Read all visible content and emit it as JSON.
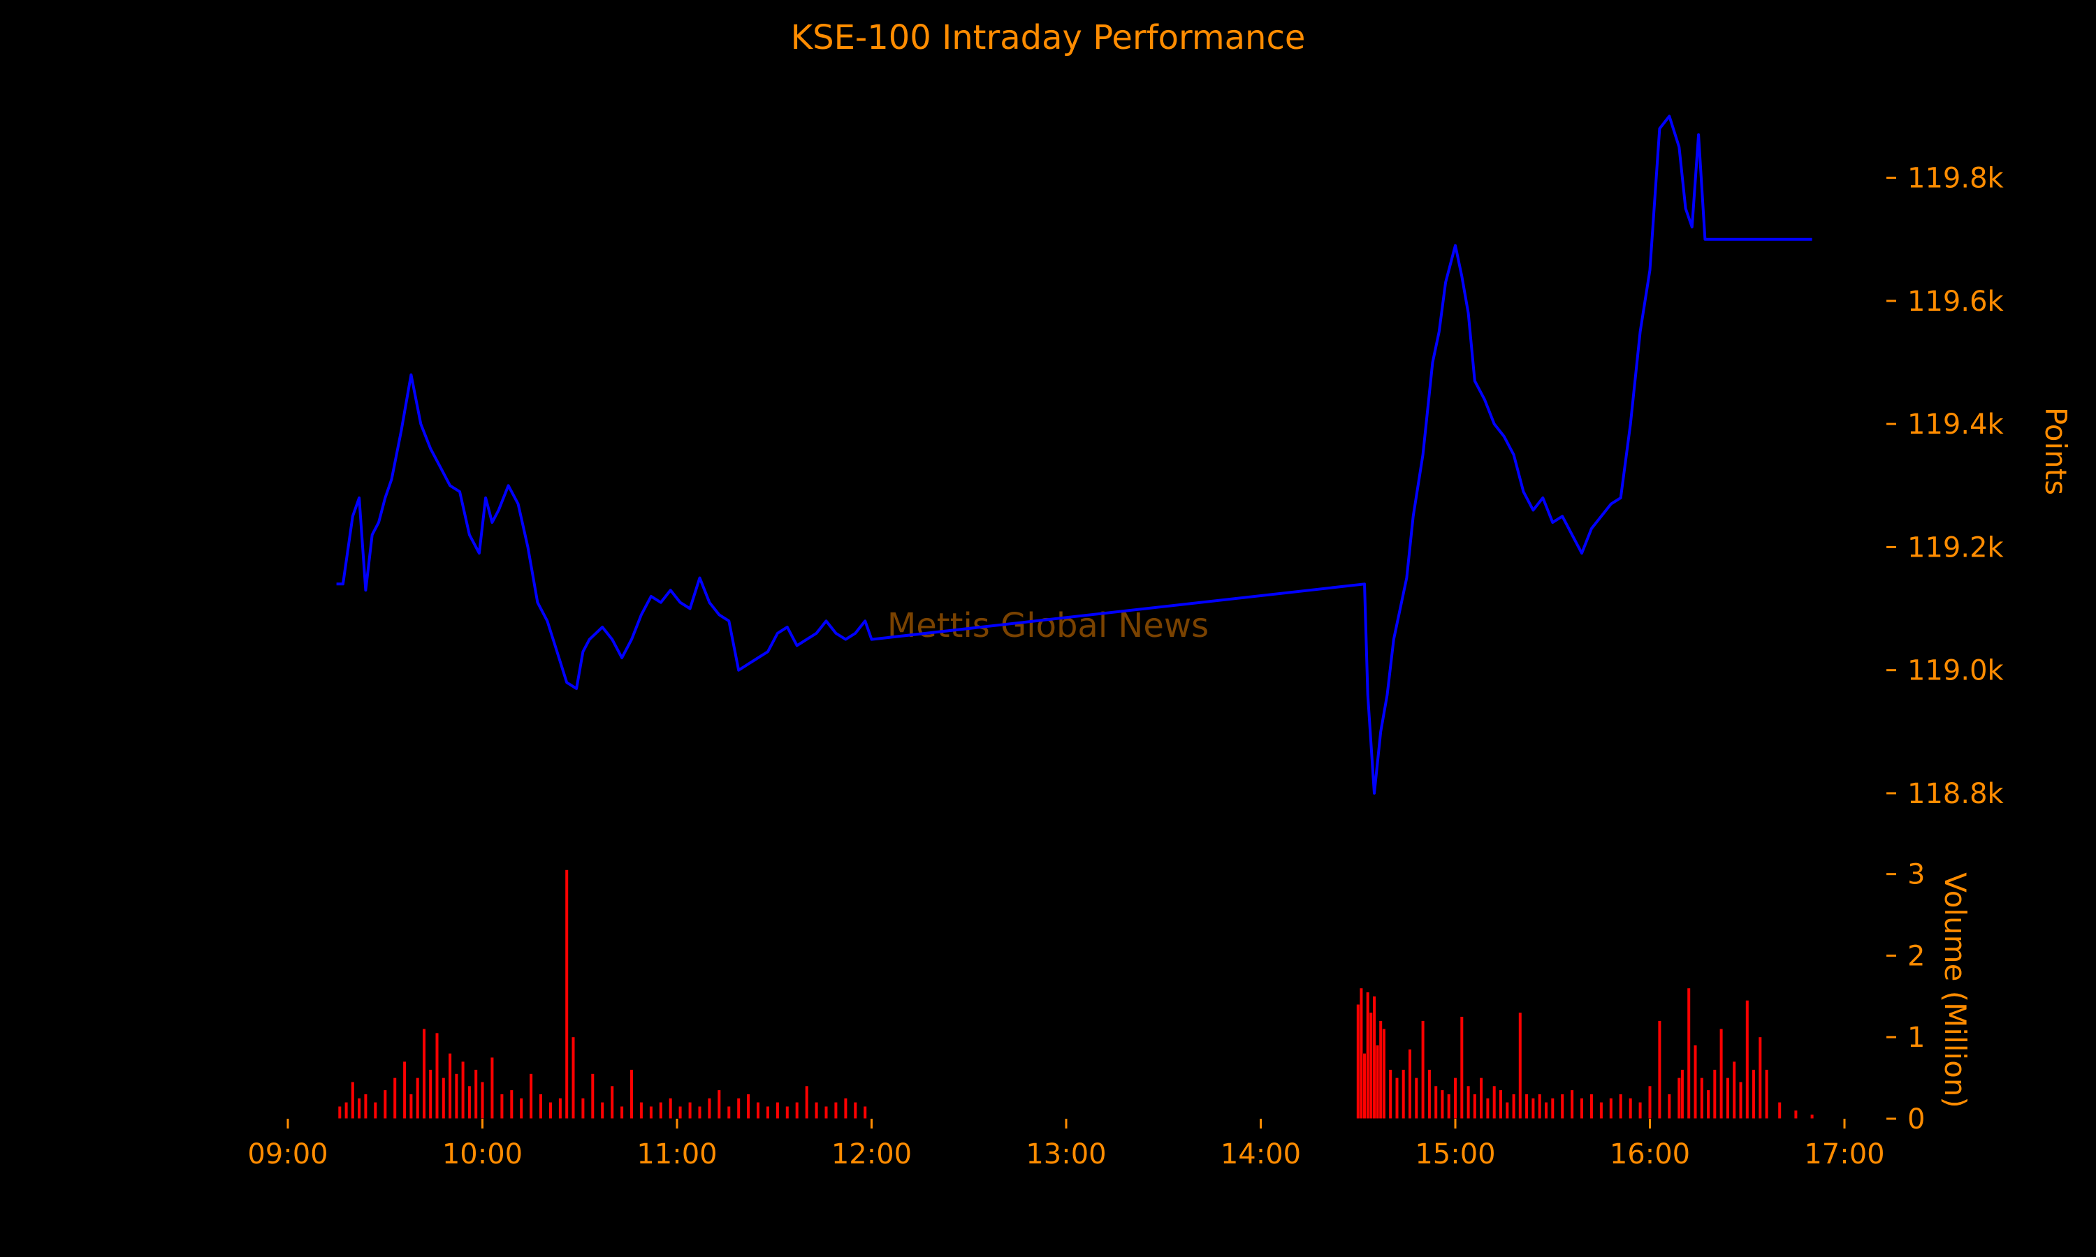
{
  "chart_data": [
    {
      "type": "line",
      "title": "KSE-100 Intraday Performance",
      "watermark": "Mettis Global News",
      "ylabel": "Points",
      "ylim": [
        118750,
        119930
      ],
      "yticks": [
        {
          "value": 118800,
          "label": "118.8k"
        },
        {
          "value": 119000,
          "label": "119.0k"
        },
        {
          "value": 119200,
          "label": "119.2k"
        },
        {
          "value": 119400,
          "label": "119.4k"
        },
        {
          "value": 119600,
          "label": "119.6k"
        },
        {
          "value": 119800,
          "label": "119.8k"
        }
      ],
      "series": [
        {
          "color": "#0000ff",
          "x": [
            "09:15",
            "09:17",
            "09:20",
            "09:22",
            "09:24",
            "09:26",
            "09:28",
            "09:30",
            "09:32",
            "09:35",
            "09:38",
            "09:41",
            "09:44",
            "09:47",
            "09:50",
            "09:53",
            "09:56",
            "09:59",
            "10:01",
            "10:03",
            "10:05",
            "10:08",
            "10:11",
            "10:14",
            "10:17",
            "10:20",
            "10:23",
            "10:26",
            "10:29",
            "10:31",
            "10:33",
            "10:35",
            "10:37",
            "10:40",
            "10:43",
            "10:46",
            "10:49",
            "10:52",
            "10:55",
            "10:58",
            "11:01",
            "11:04",
            "11:07",
            "11:10",
            "11:13",
            "11:16",
            "11:19",
            "11:22",
            "11:25",
            "11:28",
            "11:31",
            "11:34",
            "11:37",
            "11:40",
            "11:43",
            "11:46",
            "11:49",
            "11:52",
            "11:55",
            "11:58",
            "12:00",
            "14:32",
            "14:33",
            "14:35",
            "14:37",
            "14:39",
            "14:41",
            "14:43",
            "14:45",
            "14:47",
            "14:50",
            "14:53",
            "14:55",
            "14:57",
            "15:00",
            "15:02",
            "15:04",
            "15:06",
            "15:09",
            "15:12",
            "15:15",
            "15:18",
            "15:21",
            "15:24",
            "15:27",
            "15:30",
            "15:33",
            "15:36",
            "15:39",
            "15:42",
            "15:45",
            "15:48",
            "15:51",
            "15:54",
            "15:57",
            "16:00",
            "16:03",
            "16:06",
            "16:09",
            "16:11",
            "16:13",
            "16:15",
            "16:17",
            "16:19",
            "16:21",
            "16:23",
            "16:25",
            "16:27",
            "16:29",
            "16:31",
            "16:33",
            "16:35",
            "16:50"
          ],
          "values": [
            119140,
            119140,
            119250,
            119280,
            119130,
            119220,
            119240,
            119280,
            119310,
            119390,
            119480,
            119400,
            119360,
            119330,
            119300,
            119290,
            119220,
            119190,
            119280,
            119240,
            119260,
            119300,
            119270,
            119200,
            119110,
            119080,
            119030,
            118980,
            118970,
            119030,
            119050,
            119060,
            119070,
            119050,
            119020,
            119050,
            119090,
            119120,
            119110,
            119130,
            119110,
            119100,
            119150,
            119110,
            119090,
            119080,
            119000,
            119010,
            119020,
            119030,
            119060,
            119070,
            119040,
            119050,
            119060,
            119080,
            119060,
            119050,
            119060,
            119080,
            119050,
            119140,
            118960,
            118800,
            118900,
            118960,
            119050,
            119100,
            119150,
            119250,
            119350,
            119500,
            119550,
            119630,
            119690,
            119640,
            119580,
            119470,
            119440,
            119400,
            119380,
            119350,
            119290,
            119260,
            119280,
            119240,
            119250,
            119220,
            119190,
            119230,
            119250,
            119270,
            119280,
            119400,
            119550,
            119650,
            119880,
            119900,
            119850,
            119750,
            119720,
            119870,
            119700,
            119700,
            119700,
            119700,
            119700,
            119700,
            119700,
            119700,
            119700,
            119700,
            119700
          ]
        }
      ]
    },
    {
      "type": "bar",
      "ylabel": "Volume (Million)",
      "ylim": [
        0,
        3.1
      ],
      "yticks": [
        {
          "value": 0,
          "label": "0"
        },
        {
          "value": 1,
          "label": "1"
        },
        {
          "value": 2,
          "label": "2"
        },
        {
          "value": 3,
          "label": "3"
        }
      ],
      "series": [
        {
          "color": "#ff0000",
          "x": [
            "09:16",
            "09:18",
            "09:20",
            "09:22",
            "09:24",
            "09:27",
            "09:30",
            "09:33",
            "09:36",
            "09:38",
            "09:40",
            "09:42",
            "09:44",
            "09:46",
            "09:48",
            "09:50",
            "09:52",
            "09:54",
            "09:56",
            "09:58",
            "10:00",
            "10:03",
            "10:06",
            "10:09",
            "10:12",
            "10:15",
            "10:18",
            "10:21",
            "10:24",
            "10:26",
            "10:28",
            "10:31",
            "10:34",
            "10:37",
            "10:40",
            "10:43",
            "10:46",
            "10:49",
            "10:52",
            "10:55",
            "10:58",
            "11:01",
            "11:04",
            "11:07",
            "11:10",
            "11:13",
            "11:16",
            "11:19",
            "11:22",
            "11:25",
            "11:28",
            "11:31",
            "11:34",
            "11:37",
            "11:40",
            "11:43",
            "11:46",
            "11:49",
            "11:52",
            "11:55",
            "11:58",
            "14:30",
            "14:31",
            "14:32",
            "14:33",
            "14:34",
            "14:35",
            "14:36",
            "14:37",
            "14:38",
            "14:40",
            "14:42",
            "14:44",
            "14:46",
            "14:48",
            "14:50",
            "14:52",
            "14:54",
            "14:56",
            "14:58",
            "15:00",
            "15:02",
            "15:04",
            "15:06",
            "15:08",
            "15:10",
            "15:12",
            "15:14",
            "15:16",
            "15:18",
            "15:20",
            "15:22",
            "15:24",
            "15:26",
            "15:28",
            "15:30",
            "15:33",
            "15:36",
            "15:39",
            "15:42",
            "15:45",
            "15:48",
            "15:51",
            "15:54",
            "15:57",
            "16:00",
            "16:03",
            "16:06",
            "16:09",
            "16:10",
            "16:12",
            "16:14",
            "16:16",
            "16:18",
            "16:20",
            "16:22",
            "16:24",
            "16:26",
            "16:28",
            "16:30",
            "16:32",
            "16:34",
            "16:36",
            "16:40",
            "16:45",
            "16:50"
          ],
          "values": [
            0.15,
            0.2,
            0.45,
            0.25,
            0.3,
            0.2,
            0.35,
            0.5,
            0.7,
            0.3,
            0.5,
            1.1,
            0.6,
            1.05,
            0.5,
            0.8,
            0.55,
            0.7,
            0.4,
            0.6,
            0.45,
            0.75,
            0.3,
            0.35,
            0.25,
            0.55,
            0.3,
            0.2,
            0.25,
            3.05,
            1.0,
            0.25,
            0.55,
            0.2,
            0.4,
            0.15,
            0.6,
            0.2,
            0.15,
            0.2,
            0.25,
            0.15,
            0.2,
            0.15,
            0.25,
            0.35,
            0.15,
            0.25,
            0.3,
            0.2,
            0.15,
            0.2,
            0.15,
            0.2,
            0.4,
            0.2,
            0.15,
            0.2,
            0.25,
            0.2,
            0.15,
            1.4,
            1.6,
            0.8,
            1.55,
            1.3,
            1.5,
            0.9,
            1.2,
            1.1,
            0.6,
            0.5,
            0.6,
            0.85,
            0.5,
            1.2,
            0.6,
            0.4,
            0.35,
            0.3,
            0.5,
            1.25,
            0.4,
            0.3,
            0.5,
            0.25,
            0.4,
            0.35,
            0.2,
            0.3,
            1.3,
            0.3,
            0.25,
            0.3,
            0.2,
            0.25,
            0.3,
            0.35,
            0.25,
            0.3,
            0.2,
            0.25,
            0.3,
            0.25,
            0.2,
            0.4,
            1.2,
            0.3,
            0.5,
            0.6,
            1.6,
            0.9,
            0.5,
            0.35,
            0.6,
            1.1,
            0.5,
            0.7,
            0.45,
            1.45,
            0.6,
            1.0,
            0.6,
            0.2,
            0.1,
            0.05
          ]
        }
      ]
    }
  ],
  "x_axis": {
    "ticks": [
      "09:00",
      "10:00",
      "11:00",
      "12:00",
      "13:00",
      "14:00",
      "15:00",
      "16:00",
      "17:00"
    ],
    "range": [
      "09:00",
      "17:00"
    ]
  }
}
